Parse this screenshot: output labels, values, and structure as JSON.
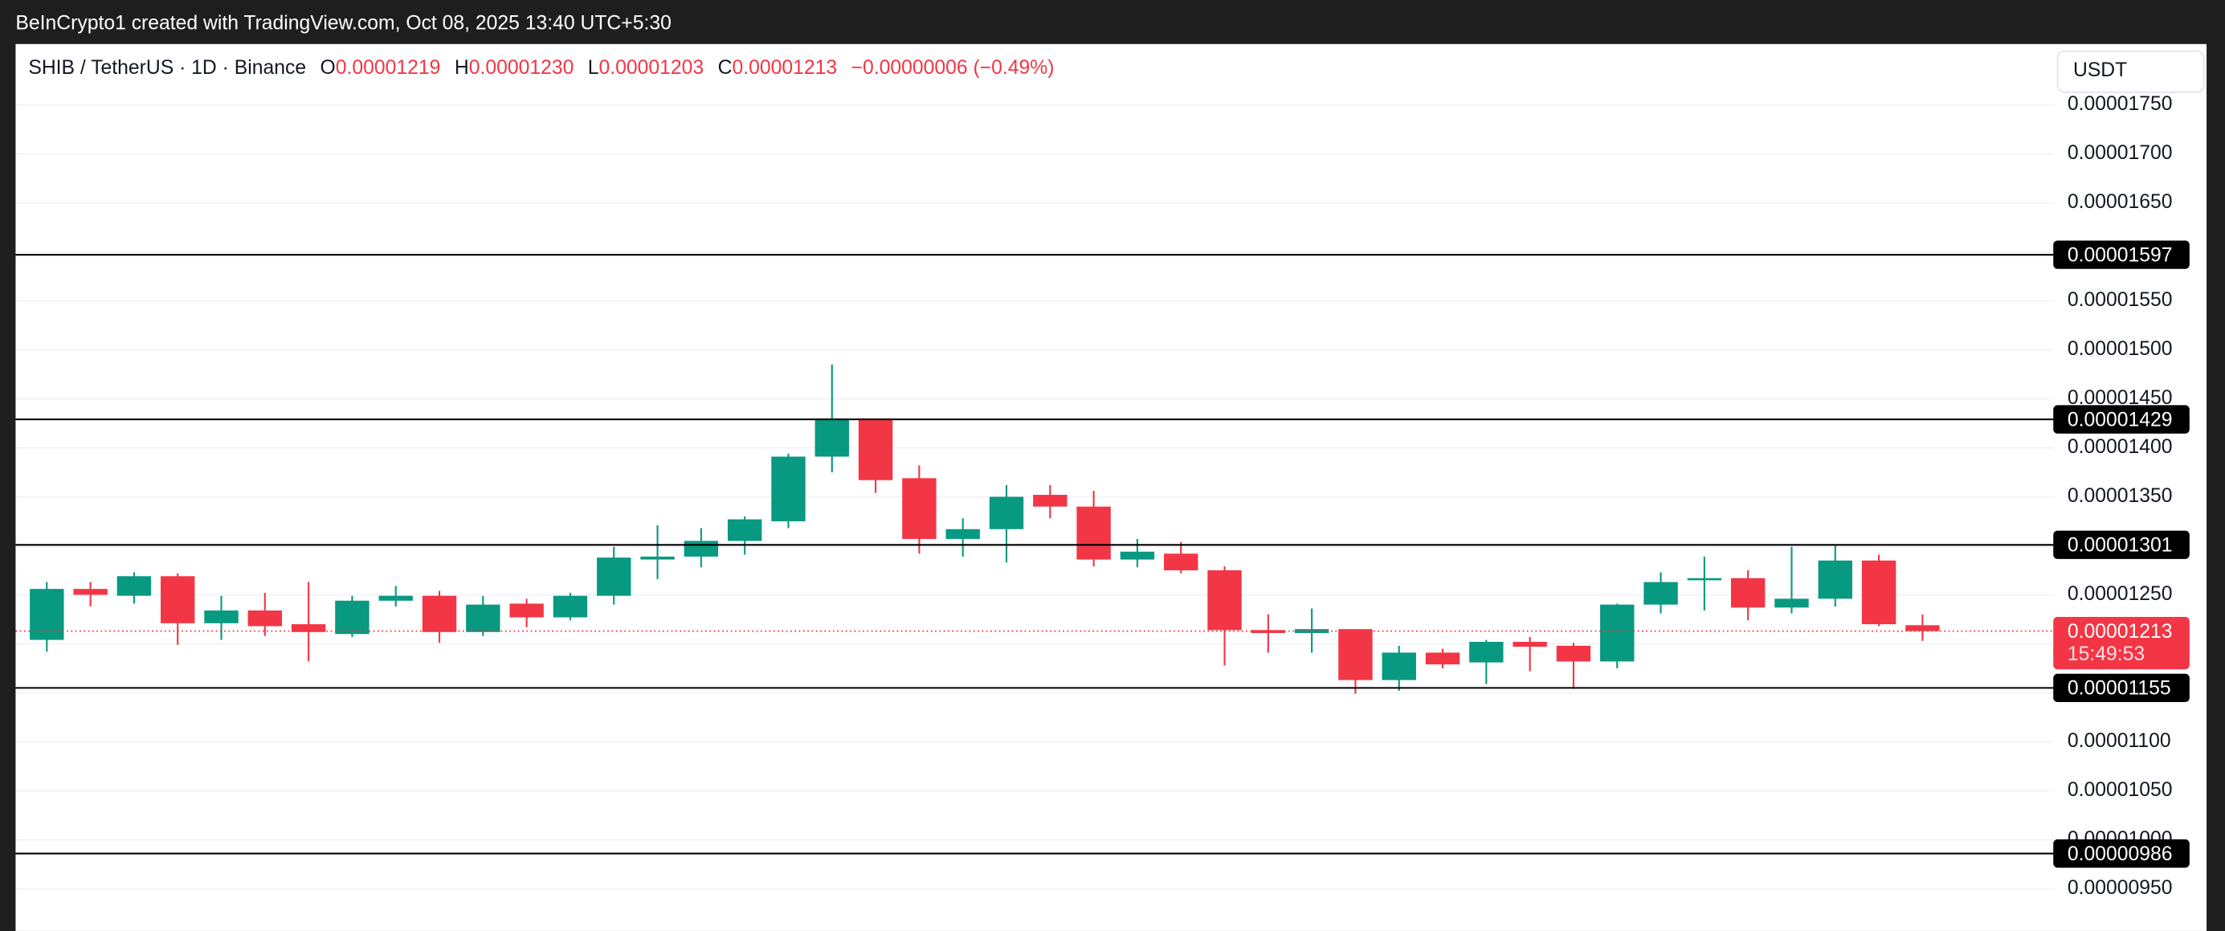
{
  "header": "BeInCrypto1 created with TradingView.com, Oct 08, 2025 13:40 UTC+5:30",
  "chart_data": {
    "type": "candlestick",
    "symbol": "SHIB / TetherUS · 1D · Binance",
    "ohlc_legend": [
      {
        "label": "O",
        "value": "0.00001219"
      },
      {
        "label": "H",
        "value": "0.00001230"
      },
      {
        "label": "L",
        "value": "0.00001203"
      },
      {
        "label": "C",
        "value": "0.00001213"
      }
    ],
    "change": "−0.00000006 (−0.49%)",
    "currency": "USDT",
    "up_color": "#089981",
    "down_color": "#f23645",
    "open": [
      1.204e-05,
      1.256e-05,
      1.249e-05,
      1.269e-05,
      1.221e-05,
      1.234e-05,
      1.22e-05,
      1.21e-05,
      1.244e-05,
      1.249e-05,
      1.212e-05,
      1.241e-05,
      1.227e-05,
      1.249e-05,
      1.286e-05,
      1.289e-05,
      1.305e-05,
      1.325e-05,
      1.391e-05,
      1.43e-05,
      1.369e-05,
      1.307e-05,
      1.317e-05,
      1.352e-05,
      1.34e-05,
      1.286e-05,
      1.292e-05,
      1.275e-05,
      1.214e-05,
      1.211e-05,
      1.215e-05,
      1.163e-05,
      1.191e-05,
      1.181e-05,
      1.202e-05,
      1.198e-05,
      1.182e-05,
      1.24e-05,
      1.265e-05,
      1.267e-05,
      1.237e-05,
      1.246e-05,
      1.285e-05,
      1.219e-05
    ],
    "high": [
      1.263e-05,
      1.263e-05,
      1.273e-05,
      1.272e-05,
      1.249e-05,
      1.252e-05,
      1.263e-05,
      1.249e-05,
      1.259e-05,
      1.254e-05,
      1.249e-05,
      1.246e-05,
      1.252e-05,
      1.299e-05,
      1.321e-05,
      1.318e-05,
      1.33e-05,
      1.394e-05,
      1.485e-05,
      1.43e-05,
      1.382e-05,
      1.328e-05,
      1.362e-05,
      1.362e-05,
      1.356e-05,
      1.307e-05,
      1.304e-05,
      1.279e-05,
      1.23e-05,
      1.236e-05,
      1.215e-05,
      1.198e-05,
      1.195e-05,
      1.204e-05,
      1.207e-05,
      1.201e-05,
      1.241e-05,
      1.273e-05,
      1.289e-05,
      1.275e-05,
      1.299e-05,
      1.301e-05,
      1.291e-05,
      1.23e-05
    ],
    "low": [
      1.192e-05,
      1.238e-05,
      1.241e-05,
      1.199e-05,
      1.204e-05,
      1.208e-05,
      1.182e-05,
      1.207e-05,
      1.238e-05,
      1.201e-05,
      1.208e-05,
      1.217e-05,
      1.224e-05,
      1.24e-05,
      1.266e-05,
      1.278e-05,
      1.291e-05,
      1.318e-05,
      1.375e-05,
      1.354e-05,
      1.292e-05,
      1.289e-05,
      1.283e-05,
      1.328e-05,
      1.279e-05,
      1.278e-05,
      1.272e-05,
      1.178e-05,
      1.191e-05,
      1.191e-05,
      1.149e-05,
      1.152e-05,
      1.175e-05,
      1.159e-05,
      1.172e-05,
      1.154e-05,
      1.175e-05,
      1.231e-05,
      1.234e-05,
      1.224e-05,
      1.231e-05,
      1.238e-05,
      1.218e-05,
      1.203e-05
    ],
    "close": [
      1.256e-05,
      1.25e-05,
      1.269e-05,
      1.221e-05,
      1.234e-05,
      1.218e-05,
      1.212e-05,
      1.244e-05,
      1.249e-05,
      1.212e-05,
      1.24e-05,
      1.227e-05,
      1.249e-05,
      1.288e-05,
      1.289e-05,
      1.305e-05,
      1.327e-05,
      1.391e-05,
      1.43e-05,
      1.367e-05,
      1.307e-05,
      1.317e-05,
      1.35e-05,
      1.34e-05,
      1.286e-05,
      1.294e-05,
      1.275e-05,
      1.214e-05,
      1.211e-05,
      1.215e-05,
      1.163e-05,
      1.191e-05,
      1.179e-05,
      1.202e-05,
      1.197e-05,
      1.182e-05,
      1.24e-05,
      1.263e-05,
      1.267e-05,
      1.237e-05,
      1.246e-05,
      1.285e-05,
      1.22e-05,
      1.213e-05
    ],
    "ylim": [
      9.07e-06,
      1.812e-05
    ],
    "yticks": [
      {
        "value": 1.75e-05,
        "label": "0.00001750"
      },
      {
        "value": 1.7e-05,
        "label": "0.00001700"
      },
      {
        "value": 1.65e-05,
        "label": "0.00001650"
      },
      {
        "value": 1.6e-05,
        "label": "0.00001600"
      },
      {
        "value": 1.55e-05,
        "label": "0.00001550"
      },
      {
        "value": 1.5e-05,
        "label": "0.00001500"
      },
      {
        "value": 1.45e-05,
        "label": "0.00001450"
      },
      {
        "value": 1.4e-05,
        "label": "0.00001400"
      },
      {
        "value": 1.35e-05,
        "label": "0.00001350"
      },
      {
        "value": 1.3e-05,
        "label": "0.00001300"
      },
      {
        "value": 1.25e-05,
        "label": "0.00001250"
      },
      {
        "value": 1.2e-05,
        "label": "0.00001200"
      },
      {
        "value": 1.15e-05,
        "label": "0.00001150"
      },
      {
        "value": 1.1e-05,
        "label": "0.00001100"
      },
      {
        "value": 1.05e-05,
        "label": "0.00001050"
      },
      {
        "value": 1e-05,
        "label": "0.00001000"
      },
      {
        "value": 9.5e-06,
        "label": "0.00000950"
      }
    ],
    "grid": true,
    "levels": [
      {
        "value": 1.597e-05,
        "label": "0.00001597"
      },
      {
        "value": 1.429e-05,
        "label": "0.00001429"
      },
      {
        "value": 1.301e-05,
        "label": "0.00001301"
      },
      {
        "value": 1.155e-05,
        "label": "0.00001155"
      },
      {
        "value": 9.86e-06,
        "label": "0.00000986"
      }
    ],
    "current_price": {
      "value": 1.213e-05,
      "label": "0.00001213",
      "countdown": "15:49:53"
    }
  }
}
